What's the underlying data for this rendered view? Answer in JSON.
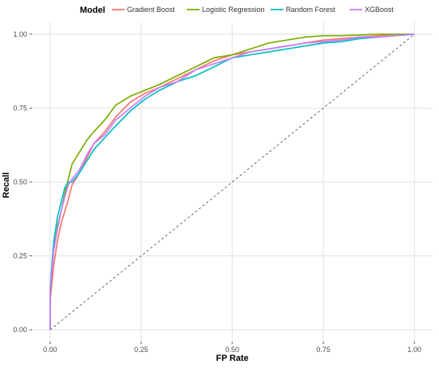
{
  "chart_data": {
    "type": "line",
    "xlabel": "FP Rate",
    "ylabel": "Recall",
    "xlim": [
      -0.05,
      1.05
    ],
    "ylim": [
      -0.04,
      1.04
    ],
    "x_ticks": [
      "0.00",
      "0.25",
      "0.50",
      "0.75",
      "1.00"
    ],
    "y_ticks": [
      "0.00",
      "0.25",
      "0.50",
      "0.75",
      "1.00"
    ],
    "grid": true,
    "legend": {
      "title": "Model",
      "placement": "top"
    },
    "diagonal_reference": {
      "from": [
        0,
        0
      ],
      "to": [
        1,
        1
      ],
      "style": "dashed"
    },
    "series": [
      {
        "name": "Gradient Boost",
        "color": "#F8766D",
        "points": [
          [
            0,
            0
          ],
          [
            0,
            0.1
          ],
          [
            0.005,
            0.16
          ],
          [
            0.01,
            0.22
          ],
          [
            0.02,
            0.3
          ],
          [
            0.03,
            0.36
          ],
          [
            0.04,
            0.4
          ],
          [
            0.05,
            0.44
          ],
          [
            0.06,
            0.49
          ],
          [
            0.08,
            0.53
          ],
          [
            0.1,
            0.58
          ],
          [
            0.12,
            0.63
          ],
          [
            0.15,
            0.67
          ],
          [
            0.18,
            0.72
          ],
          [
            0.22,
            0.77
          ],
          [
            0.26,
            0.8
          ],
          [
            0.3,
            0.82
          ],
          [
            0.35,
            0.85
          ],
          [
            0.4,
            0.88
          ],
          [
            0.45,
            0.91
          ],
          [
            0.5,
            0.93
          ],
          [
            0.55,
            0.94
          ],
          [
            0.6,
            0.95
          ],
          [
            0.65,
            0.96
          ],
          [
            0.7,
            0.97
          ],
          [
            0.75,
            0.98
          ],
          [
            0.8,
            0.985
          ],
          [
            0.85,
            0.99
          ],
          [
            0.9,
            0.995
          ],
          [
            0.95,
            1.0
          ],
          [
            1,
            1
          ]
        ]
      },
      {
        "name": "Logistic Regression",
        "color": "#7CAE00",
        "points": [
          [
            0,
            0
          ],
          [
            0,
            0.12
          ],
          [
            0.005,
            0.2
          ],
          [
            0.01,
            0.28
          ],
          [
            0.02,
            0.35
          ],
          [
            0.03,
            0.4
          ],
          [
            0.04,
            0.46
          ],
          [
            0.05,
            0.51
          ],
          [
            0.06,
            0.56
          ],
          [
            0.08,
            0.6
          ],
          [
            0.1,
            0.64
          ],
          [
            0.12,
            0.67
          ],
          [
            0.15,
            0.71
          ],
          [
            0.18,
            0.76
          ],
          [
            0.22,
            0.79
          ],
          [
            0.26,
            0.81
          ],
          [
            0.3,
            0.83
          ],
          [
            0.35,
            0.86
          ],
          [
            0.4,
            0.89
          ],
          [
            0.45,
            0.92
          ],
          [
            0.5,
            0.93
          ],
          [
            0.55,
            0.95
          ],
          [
            0.6,
            0.97
          ],
          [
            0.65,
            0.98
          ],
          [
            0.7,
            0.99
          ],
          [
            0.75,
            0.995
          ],
          [
            0.8,
            0.995
          ],
          [
            0.85,
            0.997
          ],
          [
            0.9,
            1.0
          ],
          [
            0.95,
            1.0
          ],
          [
            1,
            1
          ]
        ]
      },
      {
        "name": "Random Forest",
        "color": "#00BFC4",
        "points": [
          [
            0,
            0
          ],
          [
            0,
            0.14
          ],
          [
            0.005,
            0.22
          ],
          [
            0.01,
            0.3
          ],
          [
            0.02,
            0.38
          ],
          [
            0.03,
            0.43
          ],
          [
            0.04,
            0.48
          ],
          [
            0.05,
            0.5
          ],
          [
            0.06,
            0.5
          ],
          [
            0.08,
            0.53
          ],
          [
            0.1,
            0.57
          ],
          [
            0.12,
            0.61
          ],
          [
            0.15,
            0.65
          ],
          [
            0.18,
            0.69
          ],
          [
            0.22,
            0.74
          ],
          [
            0.26,
            0.78
          ],
          [
            0.3,
            0.81
          ],
          [
            0.35,
            0.84
          ],
          [
            0.4,
            0.86
          ],
          [
            0.45,
            0.89
          ],
          [
            0.5,
            0.92
          ],
          [
            0.55,
            0.93
          ],
          [
            0.6,
            0.94
          ],
          [
            0.65,
            0.95
          ],
          [
            0.7,
            0.96
          ],
          [
            0.75,
            0.97
          ],
          [
            0.8,
            0.975
          ],
          [
            0.85,
            0.985
          ],
          [
            0.9,
            0.99
          ],
          [
            0.95,
            0.995
          ],
          [
            1,
            1
          ]
        ]
      },
      {
        "name": "XGBoost",
        "color": "#C77CFF",
        "points": [
          [
            0,
            0
          ],
          [
            0,
            0.13
          ],
          [
            0.005,
            0.2
          ],
          [
            0.01,
            0.27
          ],
          [
            0.02,
            0.34
          ],
          [
            0.03,
            0.4
          ],
          [
            0.04,
            0.45
          ],
          [
            0.05,
            0.49
          ],
          [
            0.06,
            0.51
          ],
          [
            0.08,
            0.54
          ],
          [
            0.1,
            0.59
          ],
          [
            0.12,
            0.63
          ],
          [
            0.15,
            0.66
          ],
          [
            0.18,
            0.71
          ],
          [
            0.22,
            0.75
          ],
          [
            0.26,
            0.79
          ],
          [
            0.3,
            0.82
          ],
          [
            0.35,
            0.84
          ],
          [
            0.4,
            0.88
          ],
          [
            0.45,
            0.9
          ],
          [
            0.5,
            0.92
          ],
          [
            0.55,
            0.94
          ],
          [
            0.6,
            0.95
          ],
          [
            0.65,
            0.96
          ],
          [
            0.7,
            0.97
          ],
          [
            0.75,
            0.975
          ],
          [
            0.8,
            0.98
          ],
          [
            0.85,
            0.99
          ],
          [
            0.9,
            0.99
          ],
          [
            0.95,
            0.995
          ],
          [
            1,
            1
          ]
        ]
      }
    ]
  }
}
